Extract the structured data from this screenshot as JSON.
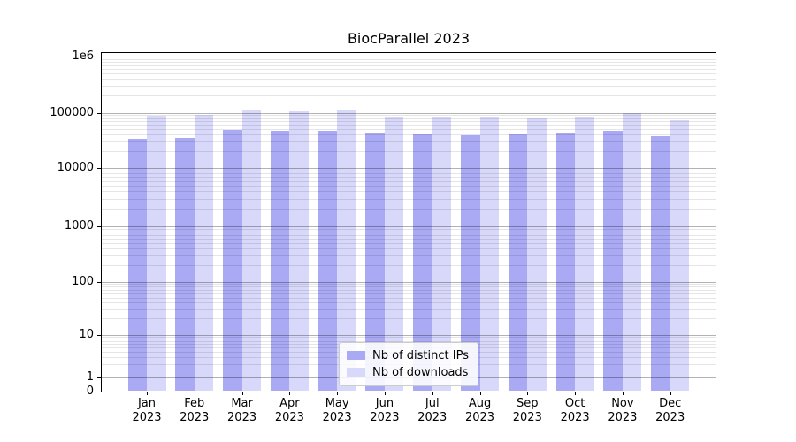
{
  "chart_data": {
    "type": "bar",
    "title": "BiocParallel 2023",
    "yscale": "symlog",
    "categories": [
      "Jan 2023",
      "Feb 2023",
      "Mar 2023",
      "Apr 2023",
      "May 2023",
      "Jun 2023",
      "Jul 2023",
      "Aug 2023",
      "Sep 2023",
      "Oct 2023",
      "Nov 2023",
      "Dec 2023"
    ],
    "series": [
      {
        "name": "Nb of distinct IPs",
        "color": "#a9a9f4",
        "values": [
          34000,
          35500,
          48500,
          46500,
          46500,
          42500,
          40500,
          39500,
          40000,
          42500,
          47000,
          37500
        ]
      },
      {
        "name": "Nb of downloads",
        "color": "#d8d8fa",
        "values": [
          88000,
          91000,
          113000,
          105500,
          110000,
          85000,
          83500,
          84000,
          78500,
          86000,
          97000,
          72000
        ]
      }
    ],
    "ytick_values": [
      0,
      1,
      10,
      100,
      1000,
      10000,
      100000,
      1000000
    ],
    "ytick_labels": [
      "0",
      "1",
      "10",
      "100",
      "1000",
      "10000",
      "100000",
      "1e6"
    ],
    "ylim": [
      0,
      2000000
    ],
    "grid": "horizontal major and minor, drawn over bars",
    "legend_position": "lower center"
  },
  "colors": {
    "grid_major": "rgba(0,0,0,0.30)",
    "grid_minor": "rgba(0,0,0,0.10)",
    "axis": "#000000",
    "background": "#ffffff"
  }
}
